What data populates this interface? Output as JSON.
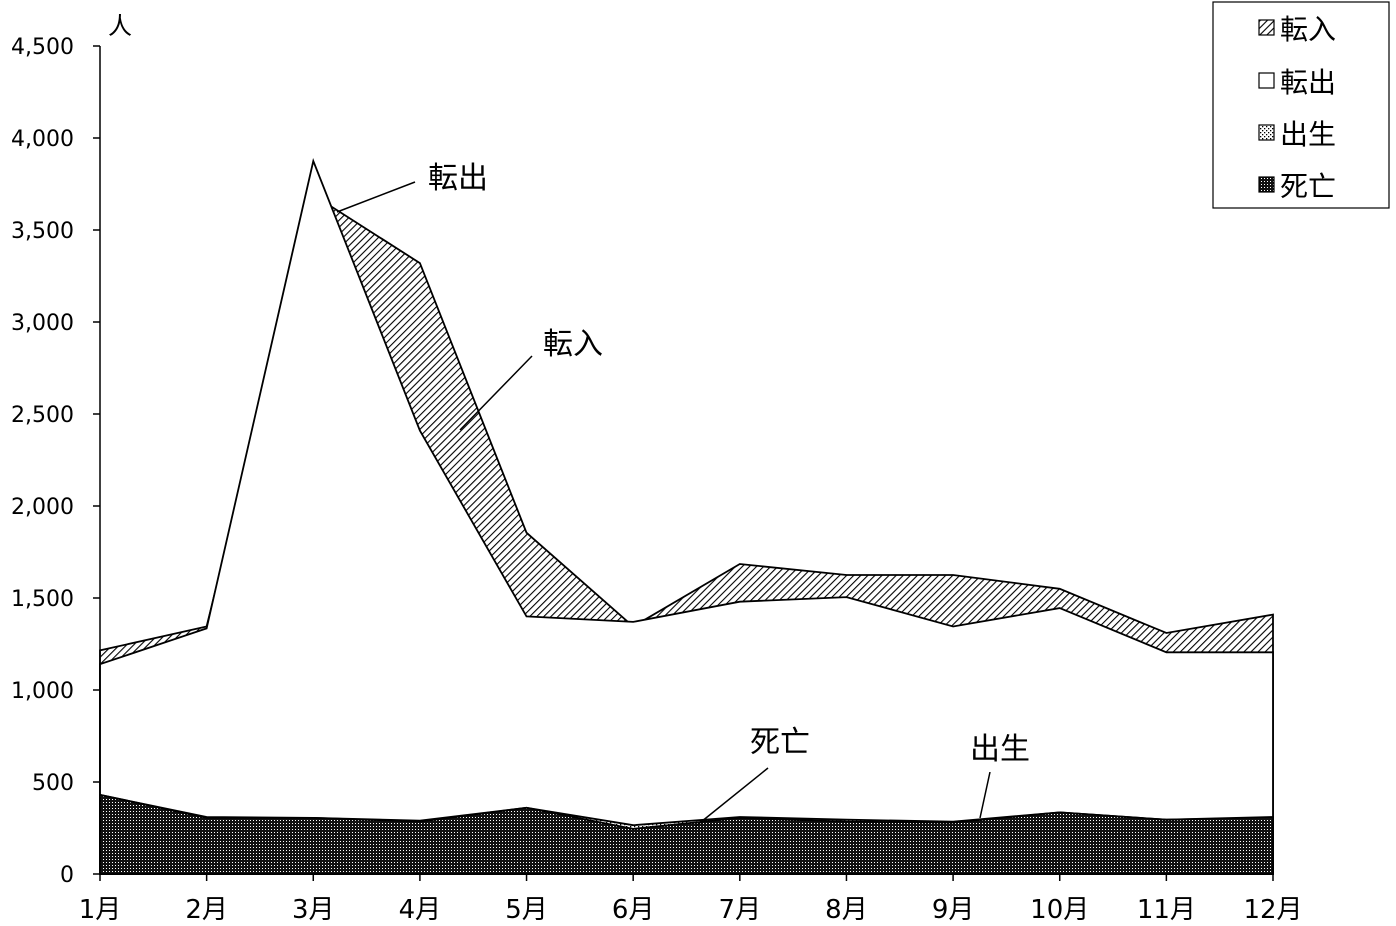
{
  "chart_data": {
    "type": "area",
    "y_unit": "人",
    "categories": [
      "1月",
      "2月",
      "3月",
      "4月",
      "5月",
      "6月",
      "7月",
      "8月",
      "9月",
      "10月",
      "11月",
      "12月"
    ],
    "ylim": [
      0,
      4500
    ],
    "yticks": [
      0,
      500,
      1000,
      1500,
      2000,
      2500,
      3000,
      3500,
      4000,
      4500
    ],
    "ytick_labels": [
      "0",
      "500",
      "1,000",
      "1,500",
      "2,000",
      "2,500",
      "3,000",
      "3,500",
      "4,000",
      "4,500"
    ],
    "series": [
      {
        "name": "転入",
        "values": [
          1215,
          1345,
          3690,
          3320,
          1855,
          1345,
          1685,
          1625,
          1625,
          1550,
          1310,
          1410
        ],
        "pattern": "diagonal-hatch"
      },
      {
        "name": "転出",
        "values": [
          1140,
          1335,
          3875,
          2410,
          1400,
          1370,
          1480,
          1505,
          1345,
          1445,
          1205,
          1205
        ],
        "pattern": "white"
      },
      {
        "name": "出生",
        "values": [
          430,
          310,
          305,
          290,
          360,
          265,
          310,
          295,
          285,
          335,
          295,
          305
        ],
        "pattern": "dots"
      },
      {
        "name": "死亡",
        "values": [
          430,
          305,
          305,
          285,
          360,
          245,
          305,
          285,
          280,
          335,
          295,
          310
        ],
        "pattern": "dense-dots"
      }
    ],
    "annotations": [
      {
        "text": "転出",
        "series": "転出"
      },
      {
        "text": "転入",
        "series": "転入"
      },
      {
        "text": "死亡",
        "series": "死亡"
      },
      {
        "text": "出生",
        "series": "出生"
      }
    ],
    "legend": {
      "placement": "top-right",
      "entries": [
        "転入",
        "転出",
        "出生",
        "死亡"
      ]
    },
    "grid": false
  }
}
